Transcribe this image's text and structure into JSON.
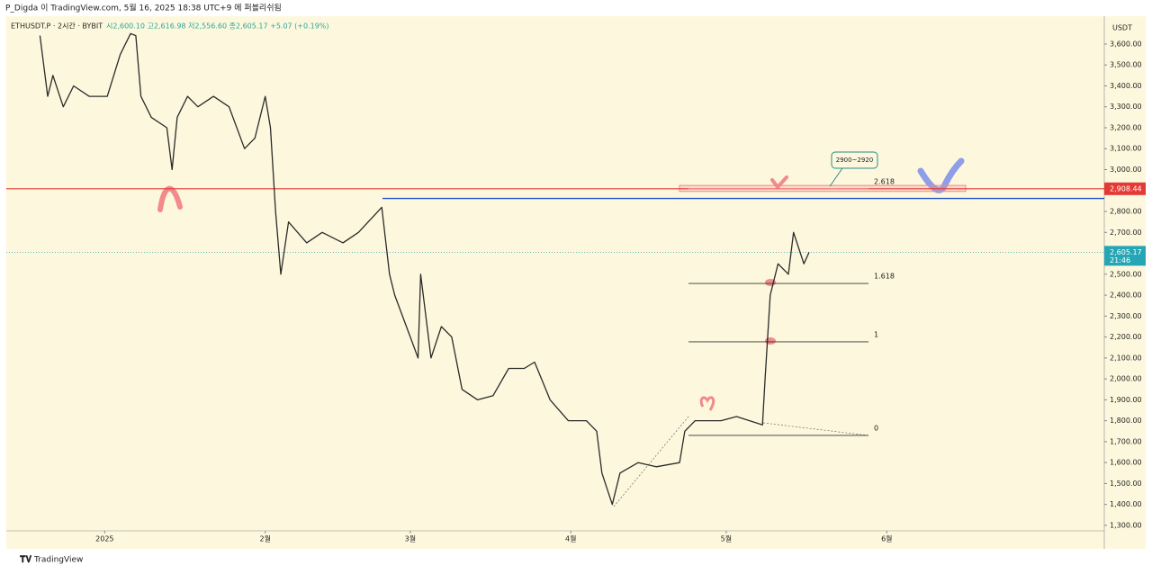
{
  "chart_data": {
    "type": "line",
    "subtitle": "P_Digda 이 TradingView.com, 5월 16, 2025 18:38 UTC+9 에 퍼블리쉬됨",
    "title": "ETHUSDT.P · 2시간 · BYBIT",
    "ohlc_text": "시2,600.10 고2,616.98 저2,556.60 종2,605.17 +5.07 (+0.19%)",
    "footer": "TradingView",
    "currency": "USDT",
    "series": [
      {
        "name": "ETHUSDT.P",
        "color": "#2a2a2a",
        "x": [
          -12.5,
          -11,
          -10,
          -8,
          -6,
          -3,
          0.5,
          3,
          5,
          6,
          7,
          9,
          12,
          13,
          14,
          16,
          18,
          21,
          24,
          27,
          29,
          31,
          32,
          33,
          34,
          35.5,
          39,
          42,
          46,
          49,
          53.5,
          55,
          56,
          59,
          60.5,
          61,
          63,
          65,
          67,
          69,
          72,
          75,
          78,
          81,
          83,
          86,
          89.5,
          93,
          95,
          96,
          98,
          99.5,
          103,
          106.5,
          111,
          112,
          114,
          119,
          122,
          127,
          127.5,
          128.5,
          130,
          132,
          133,
          135,
          136
        ],
        "values": [
          3640,
          3350,
          3450,
          3300,
          3400,
          3350,
          3350,
          3550,
          3650,
          3640,
          3350,
          3250,
          3200,
          3000,
          3250,
          3350,
          3300,
          3350,
          3300,
          3100,
          3150,
          3350,
          3200,
          2800,
          2500,
          2750,
          2650,
          2700,
          2650,
          2700,
          2820,
          2500,
          2400,
          2200,
          2100,
          2500,
          2100,
          2250,
          2200,
          1950,
          1900,
          1920,
          2050,
          2050,
          2080,
          1900,
          1800,
          1800,
          1750,
          1550,
          1400,
          1550,
          1600,
          1580,
          1600,
          1750,
          1800,
          1800,
          1820,
          1780,
          2000,
          2400,
          2550,
          2500,
          2700,
          2550,
          2605
        ]
      }
    ],
    "xlim": [
      -19,
      193
    ],
    "ylim": [
      1274,
      3733
    ],
    "xticks": [
      {
        "value": 0,
        "label": "2025"
      },
      {
        "value": 31,
        "label": "2월"
      },
      {
        "value": 59,
        "label": "3월"
      },
      {
        "value": 90,
        "label": "4월"
      },
      {
        "value": 120,
        "label": "5월"
      },
      {
        "value": 151,
        "label": "6월"
      }
    ],
    "yticks": [
      {
        "value": 1300,
        "label": "1,300.00"
      },
      {
        "value": 1400,
        "label": "1,400.00"
      },
      {
        "value": 1500,
        "label": "1,500.00"
      },
      {
        "value": 1600,
        "label": "1,600.00"
      },
      {
        "value": 1700,
        "label": "1,700.00"
      },
      {
        "value": 1800,
        "label": "1,800.00"
      },
      {
        "value": 1900,
        "label": "1,900.00"
      },
      {
        "value": 2000,
        "label": "2,000.00"
      },
      {
        "value": 2100,
        "label": "2,100.00"
      },
      {
        "value": 2200,
        "label": "2,200.00"
      },
      {
        "value": 2300,
        "label": "2,300.00"
      },
      {
        "value": 2400,
        "label": "2,400.00"
      },
      {
        "value": 2500,
        "label": "2,500.00"
      },
      {
        "value": 2600,
        "label": "2,600.00"
      },
      {
        "value": 2700,
        "label": "2,700.00"
      },
      {
        "value": 2800,
        "label": "2,800.00"
      },
      {
        "value": 2900,
        "label": "2,900.00"
      },
      {
        "value": 3000,
        "label": "3,000.00"
      },
      {
        "value": 3100,
        "label": "3,100.00"
      },
      {
        "value": 3200,
        "label": "3,200.00"
      },
      {
        "value": 3300,
        "label": "3,300.00"
      },
      {
        "value": 3400,
        "label": "3,400.00"
      },
      {
        "value": 3500,
        "label": "3,500.00"
      },
      {
        "value": 3600,
        "label": "3,600.00"
      }
    ],
    "grid": false,
    "resistance": {
      "value": 2908.44,
      "label": "2,908.44",
      "color": "#e53935"
    },
    "blue_level": {
      "value": 2862,
      "color": "#1e4fd1"
    },
    "zone": {
      "values": [
        2900,
        2920
      ],
      "label": "2900~2920"
    },
    "fib_levels": [
      {
        "ratio": 2.618,
        "price": 2908
      },
      {
        "ratio": 1.618,
        "price": 2456
      },
      {
        "ratio": 1,
        "price": 2177
      },
      {
        "ratio": 0,
        "price": 1730
      }
    ],
    "last_price": {
      "value": 2605.17,
      "label": "2,605.17",
      "time": "21:46",
      "color": "#26a6b5"
    }
  }
}
